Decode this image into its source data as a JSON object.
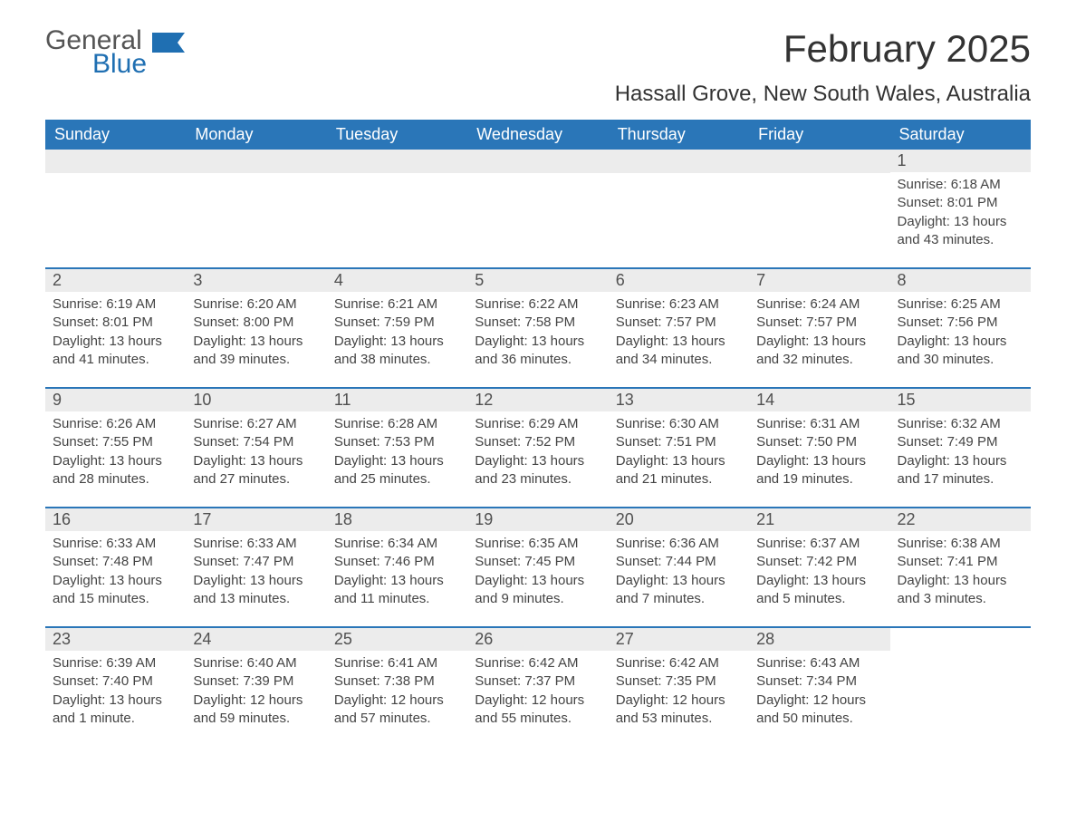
{
  "logo": {
    "general": "General",
    "blue": "Blue",
    "flag_color": "#1f6fb2"
  },
  "title": "February 2025",
  "location": "Hassall Grove, New South Wales, Australia",
  "colors": {
    "header_bg": "#2a76b8",
    "header_text": "#ffffff",
    "date_bg": "#ececec",
    "border": "#2a76b8",
    "body_text": "#444444"
  },
  "day_names": [
    "Sunday",
    "Monday",
    "Tuesday",
    "Wednesday",
    "Thursday",
    "Friday",
    "Saturday"
  ],
  "weeks": [
    [
      null,
      null,
      null,
      null,
      null,
      null,
      {
        "d": "1",
        "sr": "6:18 AM",
        "ss": "8:01 PM",
        "dl": "13 hours and 43 minutes."
      }
    ],
    [
      {
        "d": "2",
        "sr": "6:19 AM",
        "ss": "8:01 PM",
        "dl": "13 hours and 41 minutes."
      },
      {
        "d": "3",
        "sr": "6:20 AM",
        "ss": "8:00 PM",
        "dl": "13 hours and 39 minutes."
      },
      {
        "d": "4",
        "sr": "6:21 AM",
        "ss": "7:59 PM",
        "dl": "13 hours and 38 minutes."
      },
      {
        "d": "5",
        "sr": "6:22 AM",
        "ss": "7:58 PM",
        "dl": "13 hours and 36 minutes."
      },
      {
        "d": "6",
        "sr": "6:23 AM",
        "ss": "7:57 PM",
        "dl": "13 hours and 34 minutes."
      },
      {
        "d": "7",
        "sr": "6:24 AM",
        "ss": "7:57 PM",
        "dl": "13 hours and 32 minutes."
      },
      {
        "d": "8",
        "sr": "6:25 AM",
        "ss": "7:56 PM",
        "dl": "13 hours and 30 minutes."
      }
    ],
    [
      {
        "d": "9",
        "sr": "6:26 AM",
        "ss": "7:55 PM",
        "dl": "13 hours and 28 minutes."
      },
      {
        "d": "10",
        "sr": "6:27 AM",
        "ss": "7:54 PM",
        "dl": "13 hours and 27 minutes."
      },
      {
        "d": "11",
        "sr": "6:28 AM",
        "ss": "7:53 PM",
        "dl": "13 hours and 25 minutes."
      },
      {
        "d": "12",
        "sr": "6:29 AM",
        "ss": "7:52 PM",
        "dl": "13 hours and 23 minutes."
      },
      {
        "d": "13",
        "sr": "6:30 AM",
        "ss": "7:51 PM",
        "dl": "13 hours and 21 minutes."
      },
      {
        "d": "14",
        "sr": "6:31 AM",
        "ss": "7:50 PM",
        "dl": "13 hours and 19 minutes."
      },
      {
        "d": "15",
        "sr": "6:32 AM",
        "ss": "7:49 PM",
        "dl": "13 hours and 17 minutes."
      }
    ],
    [
      {
        "d": "16",
        "sr": "6:33 AM",
        "ss": "7:48 PM",
        "dl": "13 hours and 15 minutes."
      },
      {
        "d": "17",
        "sr": "6:33 AM",
        "ss": "7:47 PM",
        "dl": "13 hours and 13 minutes."
      },
      {
        "d": "18",
        "sr": "6:34 AM",
        "ss": "7:46 PM",
        "dl": "13 hours and 11 minutes."
      },
      {
        "d": "19",
        "sr": "6:35 AM",
        "ss": "7:45 PM",
        "dl": "13 hours and 9 minutes."
      },
      {
        "d": "20",
        "sr": "6:36 AM",
        "ss": "7:44 PM",
        "dl": "13 hours and 7 minutes."
      },
      {
        "d": "21",
        "sr": "6:37 AM",
        "ss": "7:42 PM",
        "dl": "13 hours and 5 minutes."
      },
      {
        "d": "22",
        "sr": "6:38 AM",
        "ss": "7:41 PM",
        "dl": "13 hours and 3 minutes."
      }
    ],
    [
      {
        "d": "23",
        "sr": "6:39 AM",
        "ss": "7:40 PM",
        "dl": "13 hours and 1 minute."
      },
      {
        "d": "24",
        "sr": "6:40 AM",
        "ss": "7:39 PM",
        "dl": "12 hours and 59 minutes."
      },
      {
        "d": "25",
        "sr": "6:41 AM",
        "ss": "7:38 PM",
        "dl": "12 hours and 57 minutes."
      },
      {
        "d": "26",
        "sr": "6:42 AM",
        "ss": "7:37 PM",
        "dl": "12 hours and 55 minutes."
      },
      {
        "d": "27",
        "sr": "6:42 AM",
        "ss": "7:35 PM",
        "dl": "12 hours and 53 minutes."
      },
      {
        "d": "28",
        "sr": "6:43 AM",
        "ss": "7:34 PM",
        "dl": "12 hours and 50 minutes."
      },
      null
    ]
  ],
  "labels": {
    "sunrise": "Sunrise: ",
    "sunset": "Sunset: ",
    "daylight": "Daylight: "
  }
}
